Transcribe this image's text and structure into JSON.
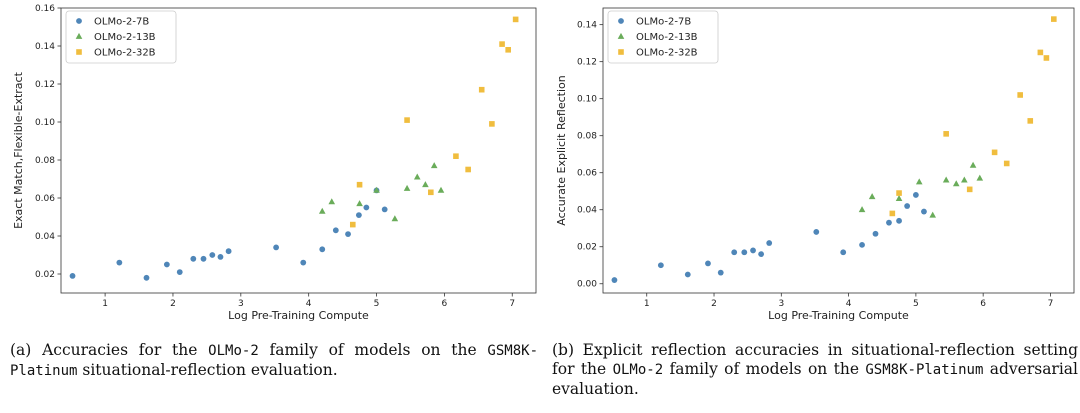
{
  "chart_data": [
    {
      "type": "scatter",
      "title": "",
      "xlabel": "Log Pre-Training Compute",
      "ylabel": "Exact Match,Flexible-Extract",
      "xlim": [
        0.35,
        7.35
      ],
      "ylim": [
        0.01,
        0.16
      ],
      "xticks": [
        1,
        2,
        3,
        4,
        5,
        6,
        7
      ],
      "yticks": [
        0.02,
        0.04,
        0.06,
        0.08,
        0.1,
        0.12,
        0.14,
        0.16
      ],
      "ytick_labels": [
        "0.02",
        "0.04",
        "0.06",
        "0.08",
        "0.10",
        "0.12",
        "0.14",
        "0.16"
      ],
      "legend_loc": "upper-left",
      "series": [
        {
          "name": "OLMo-2-7B",
          "marker": "circle",
          "color": "#4f86b8",
          "points": [
            [
              0.52,
              0.019
            ],
            [
              1.21,
              0.026
            ],
            [
              1.61,
              0.018
            ],
            [
              1.91,
              0.025
            ],
            [
              2.1,
              0.021
            ],
            [
              2.3,
              0.028
            ],
            [
              2.45,
              0.028
            ],
            [
              2.58,
              0.03
            ],
            [
              2.7,
              0.029
            ],
            [
              2.82,
              0.032
            ],
            [
              3.52,
              0.034
            ],
            [
              3.92,
              0.026
            ],
            [
              4.2,
              0.033
            ],
            [
              4.4,
              0.043
            ],
            [
              4.58,
              0.041
            ],
            [
              4.74,
              0.051
            ],
            [
              4.85,
              0.055
            ],
            [
              5.0,
              0.064
            ],
            [
              5.12,
              0.054
            ]
          ]
        },
        {
          "name": "OLMo-2-13B",
          "marker": "triangle",
          "color": "#6aac5a",
          "points": [
            [
              4.2,
              0.053
            ],
            [
              4.34,
              0.058
            ],
            [
              4.75,
              0.057
            ],
            [
              5.0,
              0.064
            ],
            [
              5.27,
              0.049
            ],
            [
              5.45,
              0.065
            ],
            [
              5.6,
              0.071
            ],
            [
              5.72,
              0.067
            ],
            [
              5.85,
              0.077
            ],
            [
              5.95,
              0.064
            ]
          ]
        },
        {
          "name": "OLMo-2-32B",
          "marker": "square",
          "color": "#f0bd3e",
          "points": [
            [
              4.65,
              0.046
            ],
            [
              4.75,
              0.067
            ],
            [
              5.45,
              0.101
            ],
            [
              5.8,
              0.063
            ],
            [
              6.17,
              0.082
            ],
            [
              6.35,
              0.075
            ],
            [
              6.55,
              0.117
            ],
            [
              6.7,
              0.099
            ],
            [
              6.85,
              0.141
            ],
            [
              6.94,
              0.138
            ],
            [
              7.05,
              0.154
            ]
          ]
        }
      ]
    },
    {
      "type": "scatter",
      "title": "",
      "xlabel": "Log Pre-Training Compute",
      "ylabel": "Accurate Explicit Reflection",
      "xlim": [
        0.35,
        7.35
      ],
      "ylim": [
        -0.005,
        0.149
      ],
      "xticks": [
        1,
        2,
        3,
        4,
        5,
        6,
        7
      ],
      "yticks": [
        0.0,
        0.02,
        0.04,
        0.06,
        0.08,
        0.1,
        0.12,
        0.14
      ],
      "ytick_labels": [
        "0.00",
        "0.02",
        "0.04",
        "0.06",
        "0.08",
        "0.10",
        "0.12",
        "0.14"
      ],
      "legend_loc": "upper-left",
      "series": [
        {
          "name": "OLMo-2-7B",
          "marker": "circle",
          "color": "#4f86b8",
          "points": [
            [
              0.52,
              0.002
            ],
            [
              1.21,
              0.01
            ],
            [
              1.61,
              0.005
            ],
            [
              1.91,
              0.011
            ],
            [
              2.1,
              0.006
            ],
            [
              2.3,
              0.017
            ],
            [
              2.45,
              0.017
            ],
            [
              2.58,
              0.018
            ],
            [
              2.7,
              0.016
            ],
            [
              2.82,
              0.022
            ],
            [
              3.52,
              0.028
            ],
            [
              3.92,
              0.017
            ],
            [
              4.2,
              0.021
            ],
            [
              4.4,
              0.027
            ],
            [
              4.6,
              0.033
            ],
            [
              4.75,
              0.034
            ],
            [
              4.87,
              0.042
            ],
            [
              5.0,
              0.048
            ],
            [
              5.12,
              0.039
            ]
          ]
        },
        {
          "name": "OLMo-2-13B",
          "marker": "triangle",
          "color": "#6aac5a",
          "points": [
            [
              4.2,
              0.04
            ],
            [
              4.35,
              0.047
            ],
            [
              4.75,
              0.046
            ],
            [
              5.05,
              0.055
            ],
            [
              5.25,
              0.037
            ],
            [
              5.45,
              0.056
            ],
            [
              5.6,
              0.054
            ],
            [
              5.72,
              0.056
            ],
            [
              5.85,
              0.064
            ],
            [
              5.95,
              0.057
            ]
          ]
        },
        {
          "name": "OLMo-2-32B",
          "marker": "square",
          "color": "#f0bd3e",
          "points": [
            [
              4.65,
              0.038
            ],
            [
              4.75,
              0.049
            ],
            [
              5.45,
              0.081
            ],
            [
              5.8,
              0.051
            ],
            [
              6.17,
              0.071
            ],
            [
              6.35,
              0.065
            ],
            [
              6.55,
              0.102
            ],
            [
              6.7,
              0.088
            ],
            [
              6.85,
              0.125
            ],
            [
              6.94,
              0.122
            ],
            [
              7.05,
              0.143
            ]
          ]
        }
      ]
    }
  ],
  "captions": {
    "a": {
      "prefix": "(a) Accuracies for the ",
      "model_family": "OLMo-2",
      "middle": " family of models on the ",
      "benchmark": "GSM8K-Platinum",
      "suffix": " situational-reflection evaluation."
    },
    "b": {
      "prefix": "(b) Explicit reflection accuracies in situational-reflection setting for the ",
      "model_family": "OLMo-2",
      "middle": " family of models on the ",
      "benchmark": "GSM8K-Platinum",
      "suffix": " adversarial evaluation."
    }
  }
}
